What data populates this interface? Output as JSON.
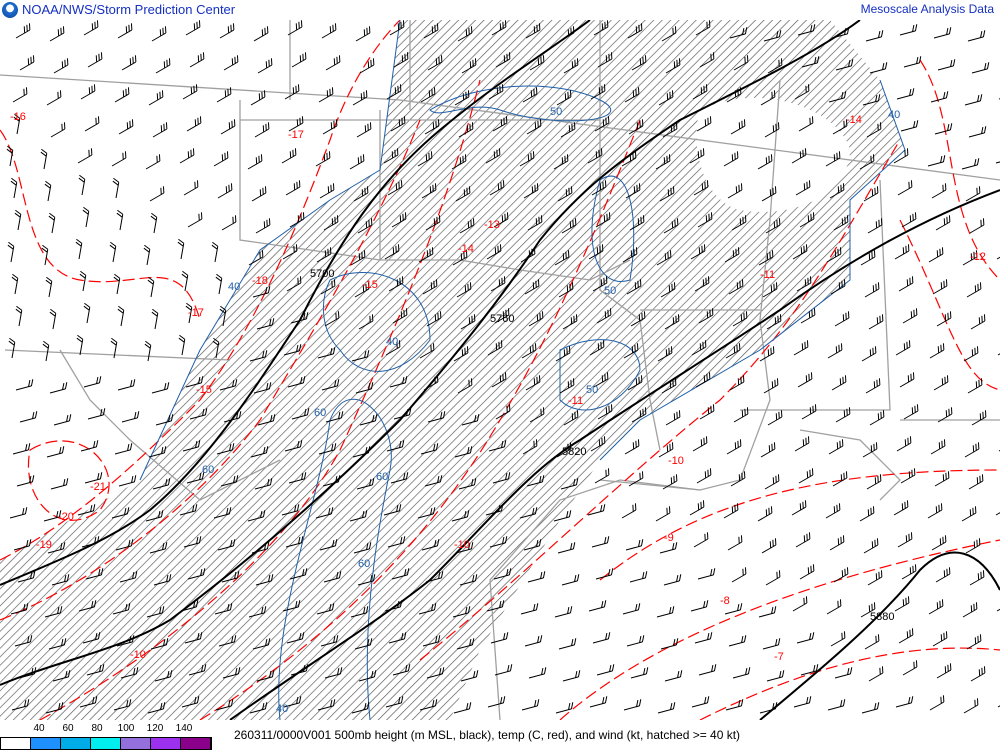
{
  "header": {
    "organization": "NOAA/NWS/Storm Prediction Center",
    "product": "Mesoscale Analysis Data"
  },
  "footer": {
    "caption": "260311/0000V001 500mb height (m MSL, black), temp (C, red), and wind (kt, hatched >= 40 kt)",
    "legend": {
      "ticks": [
        "40",
        "60",
        "80",
        "100",
        "120",
        "140"
      ],
      "colors": [
        "#ffffff",
        "#1e90ff",
        "#00ace8",
        "#00eeee",
        "#9370db",
        "#9b30ef",
        "#8b008b"
      ]
    }
  },
  "map": {
    "colors": {
      "height": "#000000",
      "temp": "#ff0000",
      "isotach": "#1f5fa8",
      "border": "#a0a0a0",
      "hatch": "#555555"
    },
    "height_labels": [
      "5700",
      "5760",
      "5820",
      "5880"
    ],
    "temp_labels": [
      "-16",
      "-17",
      "-17",
      "-18",
      "-15",
      "-14",
      "-13",
      "-15",
      "-12",
      "-11",
      "-11",
      "-10",
      "-10",
      "-9",
      "-8",
      "-7",
      "-19",
      "-20",
      "-21",
      "-10",
      "-14"
    ],
    "isotach_labels": [
      "40",
      "50",
      "40",
      "40",
      "60",
      "60",
      "60",
      "50",
      "50",
      "50",
      "60",
      "40"
    ]
  }
}
